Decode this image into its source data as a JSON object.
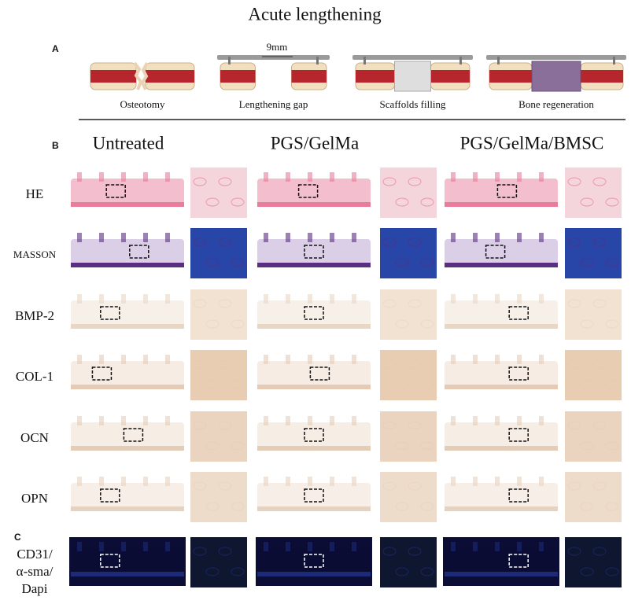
{
  "title": "Acute lengthening",
  "panel_a": {
    "label": "A",
    "gap_label": "9mm",
    "steps": [
      "Osteotomy",
      "Lengthening gap",
      "Scaffolds filling",
      "Bone regeneration"
    ]
  },
  "panel_b": {
    "label": "B",
    "columns": [
      "Untreated",
      "PGS/GelMa",
      "PGS/GelMa/BMSC"
    ],
    "rows": [
      "HE",
      "MASSON",
      "BMP-2",
      "COL-1",
      "OCN",
      "OPN"
    ]
  },
  "panel_c": {
    "label": "C",
    "row_label": [
      "CD31/",
      "α-sma/",
      "Dapi"
    ]
  }
}
